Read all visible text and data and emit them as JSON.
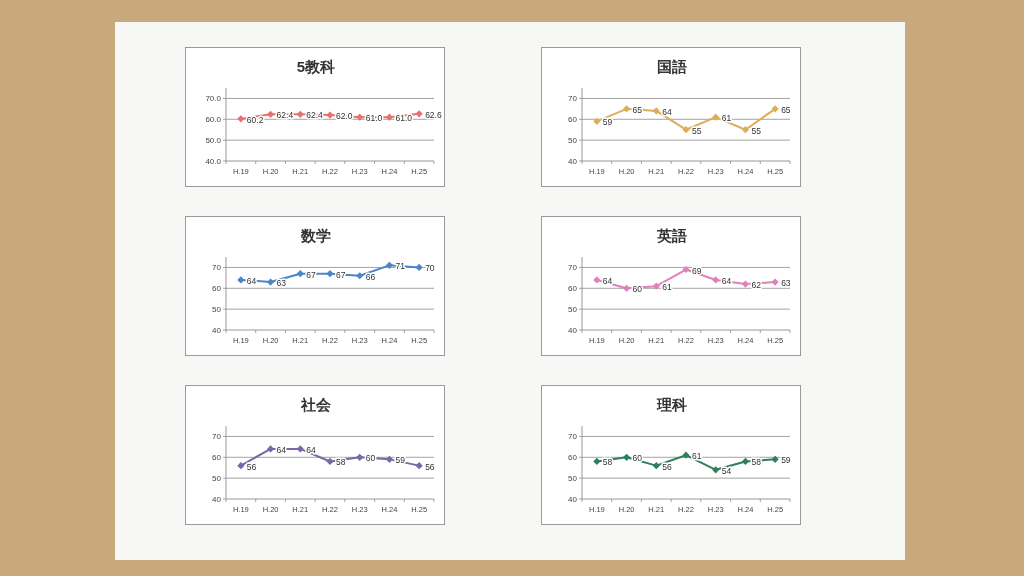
{
  "chart_data": [
    {
      "type": "line",
      "title": "5教科",
      "categories": [
        "H.19",
        "H.20",
        "H.21",
        "H.22",
        "H.23",
        "H.24",
        "H.25"
      ],
      "series": [
        {
          "color": "#e8716d",
          "values": [
            60.2,
            62.4,
            62.4,
            62.0,
            61.0,
            61.0,
            62.6
          ],
          "value_labels": [
            "60.2",
            "62.4",
            "62.4",
            "62.0",
            "61.0",
            "61.0",
            "62.6"
          ]
        }
      ],
      "ylim": [
        40,
        75
      ],
      "yticks": [
        {
          "value": 40,
          "label": "40.0"
        },
        {
          "value": 50,
          "label": "50.0"
        },
        {
          "value": 60,
          "label": "60.0"
        },
        {
          "value": 70,
          "label": "70.0"
        }
      ],
      "grid": "y",
      "marker": "diamond",
      "line_style": "solid"
    },
    {
      "type": "line",
      "title": "国語",
      "categories": [
        "H.19",
        "H.20",
        "H.21",
        "H.22",
        "H.23",
        "H.24",
        "H.25"
      ],
      "series": [
        {
          "color": "#dcae5a",
          "values": [
            59,
            65,
            64,
            55,
            61,
            55,
            65
          ]
        }
      ],
      "ylim": [
        40,
        75
      ],
      "yticks": [
        40,
        50,
        60,
        70
      ],
      "grid": "y",
      "marker": "diamond",
      "line_style": "solid",
      "data_labels": true
    },
    {
      "type": "line",
      "title": "数学",
      "categories": [
        "H.19",
        "H.20",
        "H.21",
        "H.22",
        "H.23",
        "H.24",
        "H.25"
      ],
      "series": [
        {
          "color": "#4a86c8",
          "values": [
            64,
            63,
            67,
            67,
            66,
            71,
            70
          ]
        }
      ],
      "ylim": [
        40,
        75
      ],
      "yticks": [
        40,
        50,
        60,
        70
      ],
      "grid": "y",
      "marker": "diamond",
      "line_style": "solid",
      "data_labels": true
    },
    {
      "type": "line",
      "title": "英語",
      "categories": [
        "H.19",
        "H.20",
        "H.21",
        "H.22",
        "H.23",
        "H.24",
        "H.25"
      ],
      "series": [
        {
          "color": "#e080bc",
          "values": [
            64,
            60,
            61,
            69,
            64,
            62,
            63
          ]
        }
      ],
      "ylim": [
        40,
        75
      ],
      "yticks": [
        40,
        50,
        60,
        70
      ],
      "grid": "y",
      "marker": "diamond",
      "line_style": "solid",
      "data_labels": true
    },
    {
      "type": "line",
      "title": "社会",
      "categories": [
        "H.19",
        "H.20",
        "H.21",
        "H.22",
        "H.23",
        "H.24",
        "H.25"
      ],
      "series": [
        {
          "color": "#7a68a6",
          "values": [
            56,
            64,
            64,
            58,
            60,
            59,
            56
          ]
        }
      ],
      "ylim": [
        40,
        75
      ],
      "yticks": [
        40,
        50,
        60,
        70
      ],
      "grid": "y",
      "marker": "diamond",
      "line_style": "solid",
      "data_labels": true
    },
    {
      "type": "line",
      "title": "理科",
      "categories": [
        "H.19",
        "H.20",
        "H.21",
        "H.22",
        "H.23",
        "H.24",
        "H.25"
      ],
      "series": [
        {
          "color": "#2f7f5a",
          "values": [
            58,
            60,
            56,
            61,
            54,
            58,
            59
          ]
        }
      ],
      "ylim": [
        40,
        75
      ],
      "yticks": [
        40,
        50,
        60,
        70
      ],
      "grid": "y",
      "marker": "diamond",
      "line_style": "solid",
      "data_labels": true
    }
  ]
}
